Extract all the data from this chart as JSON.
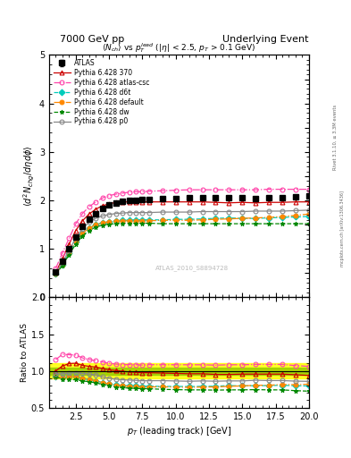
{
  "title_left": "7000 GeV pp",
  "title_right": "Underlying Event",
  "main_title": "$\\langle N_{ch}\\rangle$ vs $p_T^{lead}$ ($|\\eta|$ < 2.5, $p_T$ > 0.1 GeV)",
  "xlabel": "$p_T$ (leading track) [GeV]",
  "ylabel_main": "$\\langle d^2 N_{chg}/d\\eta d\\phi \\rangle$",
  "ylabel_ratio": "Ratio to ATLAS",
  "watermark": "ATLAS_2010_S8894728",
  "right_label1": "Rivet 3.1.10, ≥ 3.3M events",
  "right_label2": "mcplots.cern.ch [arXiv:1306.3436]",
  "xlim": [
    0.5,
    20
  ],
  "ylim_main": [
    0,
    5.0
  ],
  "ylim_ratio": [
    0.5,
    2.0
  ],
  "atlas_data": {
    "x": [
      1.0,
      1.5,
      2.0,
      2.5,
      3.0,
      3.5,
      4.0,
      4.5,
      5.0,
      5.5,
      6.0,
      6.5,
      7.0,
      7.5,
      8.0,
      9.0,
      10.0,
      11.0,
      12.0,
      13.0,
      14.0,
      15.0,
      16.0,
      17.0,
      18.0,
      19.0,
      20.0
    ],
    "y": [
      0.52,
      0.75,
      1.0,
      1.25,
      1.47,
      1.62,
      1.73,
      1.83,
      1.9,
      1.95,
      1.98,
      2.0,
      2.01,
      2.02,
      2.02,
      2.03,
      2.04,
      2.05,
      2.05,
      2.06,
      2.05,
      2.05,
      2.04,
      2.05,
      2.05,
      2.08,
      2.1
    ],
    "yerr": [
      0.03,
      0.03,
      0.03,
      0.03,
      0.03,
      0.03,
      0.03,
      0.03,
      0.03,
      0.03,
      0.03,
      0.03,
      0.03,
      0.03,
      0.03,
      0.03,
      0.03,
      0.03,
      0.03,
      0.03,
      0.03,
      0.03,
      0.03,
      0.03,
      0.03,
      0.03,
      0.04
    ],
    "color": "#000000",
    "label": "ATLAS"
  },
  "series": [
    {
      "label": "Pythia 6.428 370",
      "color": "#cc0000",
      "marker": "^",
      "markerface": "none",
      "linestyle": "-",
      "x": [
        1.0,
        1.5,
        2.0,
        2.5,
        3.0,
        3.5,
        4.0,
        4.5,
        5.0,
        5.5,
        6.0,
        6.5,
        7.0,
        7.5,
        8.0,
        9.0,
        10.0,
        11.0,
        12.0,
        13.0,
        14.0,
        15.0,
        16.0,
        17.0,
        18.0,
        19.0,
        20.0
      ],
      "y": [
        0.52,
        0.8,
        1.1,
        1.38,
        1.58,
        1.72,
        1.82,
        1.89,
        1.93,
        1.96,
        1.97,
        1.97,
        1.97,
        1.97,
        1.97,
        1.97,
        1.97,
        1.97,
        1.97,
        1.96,
        1.95,
        1.96,
        1.95,
        1.96,
        1.96,
        1.97,
        1.97
      ]
    },
    {
      "label": "Pythia 6.428 atlas-csc",
      "color": "#ff44aa",
      "marker": "o",
      "markerface": "none",
      "linestyle": "-.",
      "x": [
        1.0,
        1.5,
        2.0,
        2.5,
        3.0,
        3.5,
        4.0,
        4.5,
        5.0,
        5.5,
        6.0,
        6.5,
        7.0,
        7.5,
        8.0,
        9.0,
        10.0,
        11.0,
        12.0,
        13.0,
        14.0,
        15.0,
        16.0,
        17.0,
        18.0,
        19.0,
        20.0
      ],
      "y": [
        0.6,
        0.92,
        1.22,
        1.52,
        1.73,
        1.87,
        1.97,
        2.05,
        2.1,
        2.13,
        2.15,
        2.17,
        2.18,
        2.18,
        2.19,
        2.2,
        2.21,
        2.22,
        2.22,
        2.22,
        2.22,
        2.22,
        2.22,
        2.23,
        2.23,
        2.23,
        2.23
      ]
    },
    {
      "label": "Pythia 6.428 d6t",
      "color": "#00ccbb",
      "marker": "D",
      "markerface": "fill",
      "linestyle": "--",
      "x": [
        1.0,
        1.5,
        2.0,
        2.5,
        3.0,
        3.5,
        4.0,
        4.5,
        5.0,
        5.5,
        6.0,
        6.5,
        7.0,
        7.5,
        8.0,
        9.0,
        10.0,
        11.0,
        12.0,
        13.0,
        14.0,
        15.0,
        16.0,
        17.0,
        18.0,
        19.0,
        20.0
      ],
      "y": [
        0.48,
        0.68,
        0.92,
        1.15,
        1.32,
        1.43,
        1.5,
        1.54,
        1.56,
        1.58,
        1.59,
        1.59,
        1.6,
        1.6,
        1.6,
        1.6,
        1.61,
        1.61,
        1.62,
        1.63,
        1.64,
        1.63,
        1.63,
        1.64,
        1.65,
        1.66,
        1.67
      ]
    },
    {
      "label": "Pythia 6.428 default",
      "color": "#ff8800",
      "marker": "o",
      "markerface": "fill",
      "linestyle": "-.",
      "x": [
        1.0,
        1.5,
        2.0,
        2.5,
        3.0,
        3.5,
        4.0,
        4.5,
        5.0,
        5.5,
        6.0,
        6.5,
        7.0,
        7.5,
        8.0,
        9.0,
        10.0,
        11.0,
        12.0,
        13.0,
        14.0,
        15.0,
        16.0,
        17.0,
        18.0,
        19.0,
        20.0
      ],
      "y": [
        0.48,
        0.68,
        0.92,
        1.15,
        1.32,
        1.43,
        1.5,
        1.54,
        1.56,
        1.57,
        1.58,
        1.58,
        1.58,
        1.58,
        1.58,
        1.59,
        1.59,
        1.59,
        1.6,
        1.61,
        1.62,
        1.63,
        1.64,
        1.65,
        1.67,
        1.69,
        1.72
      ]
    },
    {
      "label": "Pythia 6.428 dw",
      "color": "#008800",
      "marker": "*",
      "markerface": "fill",
      "linestyle": "--",
      "x": [
        1.0,
        1.5,
        2.0,
        2.5,
        3.0,
        3.5,
        4.0,
        4.5,
        5.0,
        5.5,
        6.0,
        6.5,
        7.0,
        7.5,
        8.0,
        9.0,
        10.0,
        11.0,
        12.0,
        13.0,
        14.0,
        15.0,
        16.0,
        17.0,
        18.0,
        19.0,
        20.0
      ],
      "y": [
        0.48,
        0.66,
        0.88,
        1.1,
        1.27,
        1.38,
        1.45,
        1.49,
        1.51,
        1.52,
        1.53,
        1.53,
        1.53,
        1.53,
        1.53,
        1.52,
        1.52,
        1.52,
        1.52,
        1.52,
        1.52,
        1.52,
        1.52,
        1.52,
        1.52,
        1.52,
        1.52
      ]
    },
    {
      "label": "Pythia 6.428 p0",
      "color": "#888888",
      "marker": "o",
      "markerface": "none",
      "linestyle": "-",
      "x": [
        1.0,
        1.5,
        2.0,
        2.5,
        3.0,
        3.5,
        4.0,
        4.5,
        5.0,
        5.5,
        6.0,
        6.5,
        7.0,
        7.5,
        8.0,
        9.0,
        10.0,
        11.0,
        12.0,
        13.0,
        14.0,
        15.0,
        16.0,
        17.0,
        18.0,
        19.0,
        20.0
      ],
      "y": [
        0.5,
        0.72,
        0.97,
        1.22,
        1.42,
        1.55,
        1.63,
        1.68,
        1.71,
        1.73,
        1.74,
        1.75,
        1.75,
        1.75,
        1.75,
        1.76,
        1.76,
        1.76,
        1.77,
        1.77,
        1.77,
        1.77,
        1.78,
        1.78,
        1.78,
        1.79,
        1.8
      ]
    }
  ],
  "ratio_band_yellow": [
    0.9,
    1.1
  ],
  "ratio_band_green": [
    0.95,
    1.05
  ],
  "bg_color": "#ffffff"
}
